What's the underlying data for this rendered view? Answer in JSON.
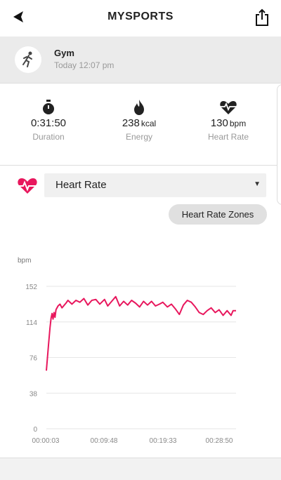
{
  "header": {
    "title": "MYSPORTS",
    "back_icon": "back-arrow-icon",
    "share_icon": "share-icon"
  },
  "activity": {
    "name": "Gym",
    "time": "Today 12:07 pm",
    "icon": "running-person-icon"
  },
  "stats": [
    {
      "icon": "stopwatch-icon",
      "value": "0:31:50",
      "unit": "",
      "label": "Duration"
    },
    {
      "icon": "flame-icon",
      "value": "238",
      "unit": "kcal",
      "label": "Energy"
    },
    {
      "icon": "heart-rate-icon",
      "value": "130",
      "unit": "bpm",
      "label": "Heart Rate"
    }
  ],
  "metric_select": {
    "selected": "Heart Rate",
    "icon": "heart-pulse-icon"
  },
  "zones_button": "Heart Rate Zones",
  "colors": {
    "accent": "#e8175d",
    "grid": "#e6e6e6"
  },
  "chart_data": {
    "type": "line",
    "ylabel": "bpm",
    "yticks": [
      "0",
      "38",
      "76",
      "114",
      "152"
    ],
    "ylim": [
      0,
      152
    ],
    "xticks": [
      "00:00:03",
      "00:09:48",
      "00:19:33",
      "00:28:50"
    ],
    "xlim": [
      3,
      1910
    ],
    "grid": true,
    "series": [
      {
        "x": [
          3,
          25,
          40,
          50,
          60,
          70,
          80,
          90,
          100,
          120,
          140,
          160,
          200,
          220,
          260,
          300,
          340,
          380,
          420,
          460,
          500,
          540,
          588,
          620,
          660,
          700,
          740,
          780,
          820,
          860,
          900,
          940,
          980,
          1020,
          1060,
          1100,
          1140,
          1173,
          1220,
          1260,
          1300,
          1340,
          1380,
          1420,
          1460,
          1500,
          1540,
          1580,
          1620,
          1660,
          1700,
          1740,
          1780,
          1820,
          1860,
          1880,
          1910
        ],
        "y": [
          62,
          90,
          108,
          118,
          123,
          117,
          124,
          119,
          127,
          131,
          133,
          129,
          134,
          137,
          133,
          137,
          135,
          139,
          132,
          137,
          138,
          133,
          138,
          131,
          136,
          141,
          131,
          136,
          132,
          137,
          134,
          130,
          136,
          132,
          136,
          131,
          133,
          135,
          130,
          133,
          128,
          122,
          132,
          137,
          135,
          130,
          124,
          122,
          126,
          129,
          124,
          127,
          121,
          126,
          121,
          126,
          126
        ]
      }
    ]
  }
}
